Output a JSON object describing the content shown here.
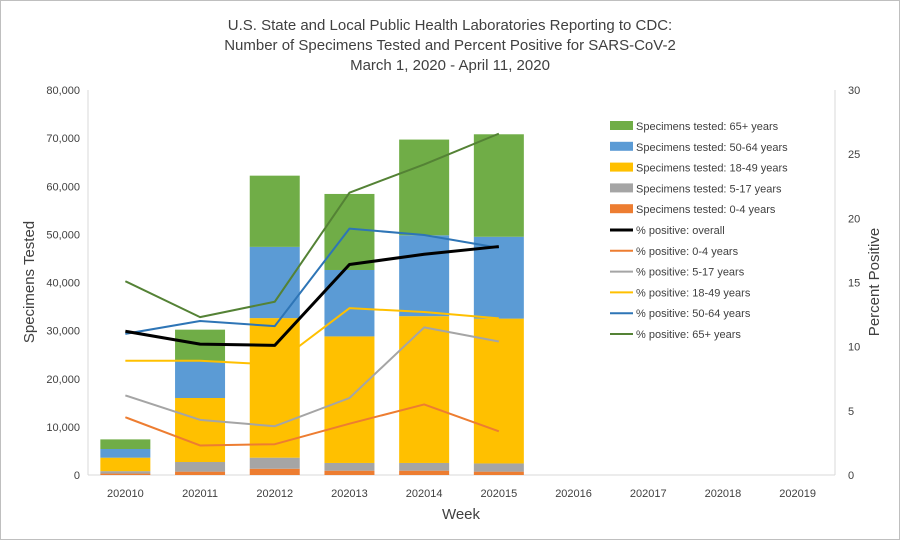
{
  "chart_data": {
    "type": "bar",
    "title_lines": [
      "U.S. State and Local Public Health Laboratories Reporting to CDC:",
      "Number of Specimens Tested and Percent Positive for SARS-CoV-2",
      "March 1, 2020 - April 11, 2020"
    ],
    "xlabel": "Week",
    "ylabel": "Specimens Tested",
    "y2label": "Percent Positive",
    "categories": [
      "202010",
      "202011",
      "202012",
      "202013",
      "202014",
      "202015",
      "202016",
      "202017",
      "202018",
      "202019"
    ],
    "ylim": [
      0,
      80000
    ],
    "y_ticks": [
      "0",
      "10,000",
      "20,000",
      "30,000",
      "40,000",
      "50,000",
      "60,000",
      "70,000",
      "80,000"
    ],
    "y2lim": [
      0,
      30
    ],
    "y2_ticks": [
      "0",
      "5",
      "10",
      "15",
      "20",
      "25",
      "30"
    ],
    "grid": false,
    "legend_position": "right",
    "bar_series": [
      {
        "name": "Specimens tested: 0-4 years",
        "color": "#ed7d31",
        "values": [
          300,
          700,
          1300,
          900,
          900,
          700,
          null,
          null,
          null,
          null
        ]
      },
      {
        "name": "Specimens tested: 5-17 years",
        "color": "#a5a5a5",
        "values": [
          500,
          2000,
          2300,
          1600,
          1600,
          1700,
          null,
          null,
          null,
          null
        ]
      },
      {
        "name": "Specimens tested: 18-49 years",
        "color": "#ffc000",
        "values": [
          2800,
          13300,
          29000,
          26300,
          30500,
          30100,
          null,
          null,
          null,
          null
        ]
      },
      {
        "name": "Specimens tested: 50-64 years",
        "color": "#5b9bd5",
        "values": [
          1800,
          7700,
          14800,
          13800,
          16800,
          17000,
          null,
          null,
          null,
          null
        ]
      },
      {
        "name": "Specimens tested: 65+ years",
        "color": "#70ad47",
        "values": [
          2000,
          6500,
          14800,
          15800,
          19900,
          21300,
          null,
          null,
          null,
          null
        ]
      }
    ],
    "line_series": [
      {
        "name": "% positive: overall",
        "color": "#000000",
        "width": 3,
        "values": [
          11.2,
          10.2,
          10.1,
          16.4,
          17.2,
          17.8,
          null,
          null,
          null,
          null
        ]
      },
      {
        "name": "% positive: 0-4 years",
        "color": "#ed7d31",
        "width": 2,
        "values": [
          4.5,
          2.3,
          2.4,
          4.0,
          5.5,
          3.4,
          null,
          null,
          null,
          null
        ]
      },
      {
        "name": "% positive: 5-17 years",
        "color": "#a5a5a5",
        "width": 2,
        "values": [
          6.2,
          4.3,
          3.8,
          6.0,
          11.5,
          10.4,
          null,
          null,
          null,
          null
        ]
      },
      {
        "name": "% positive: 18-49 years",
        "color": "#ffc000",
        "width": 2,
        "values": [
          8.9,
          8.9,
          8.6,
          13.0,
          12.7,
          12.2,
          null,
          null,
          null,
          null
        ]
      },
      {
        "name": "% positive: 50-64 years",
        "color": "#2e75b6",
        "width": 2,
        "values": [
          11.0,
          12.0,
          11.6,
          19.2,
          18.7,
          17.7,
          null,
          null,
          null,
          null
        ]
      },
      {
        "name": "% positive: 65+ years",
        "color": "#548235",
        "width": 2,
        "values": [
          15.1,
          12.3,
          13.5,
          22.0,
          24.2,
          26.6,
          null,
          null,
          null,
          null
        ]
      }
    ]
  }
}
